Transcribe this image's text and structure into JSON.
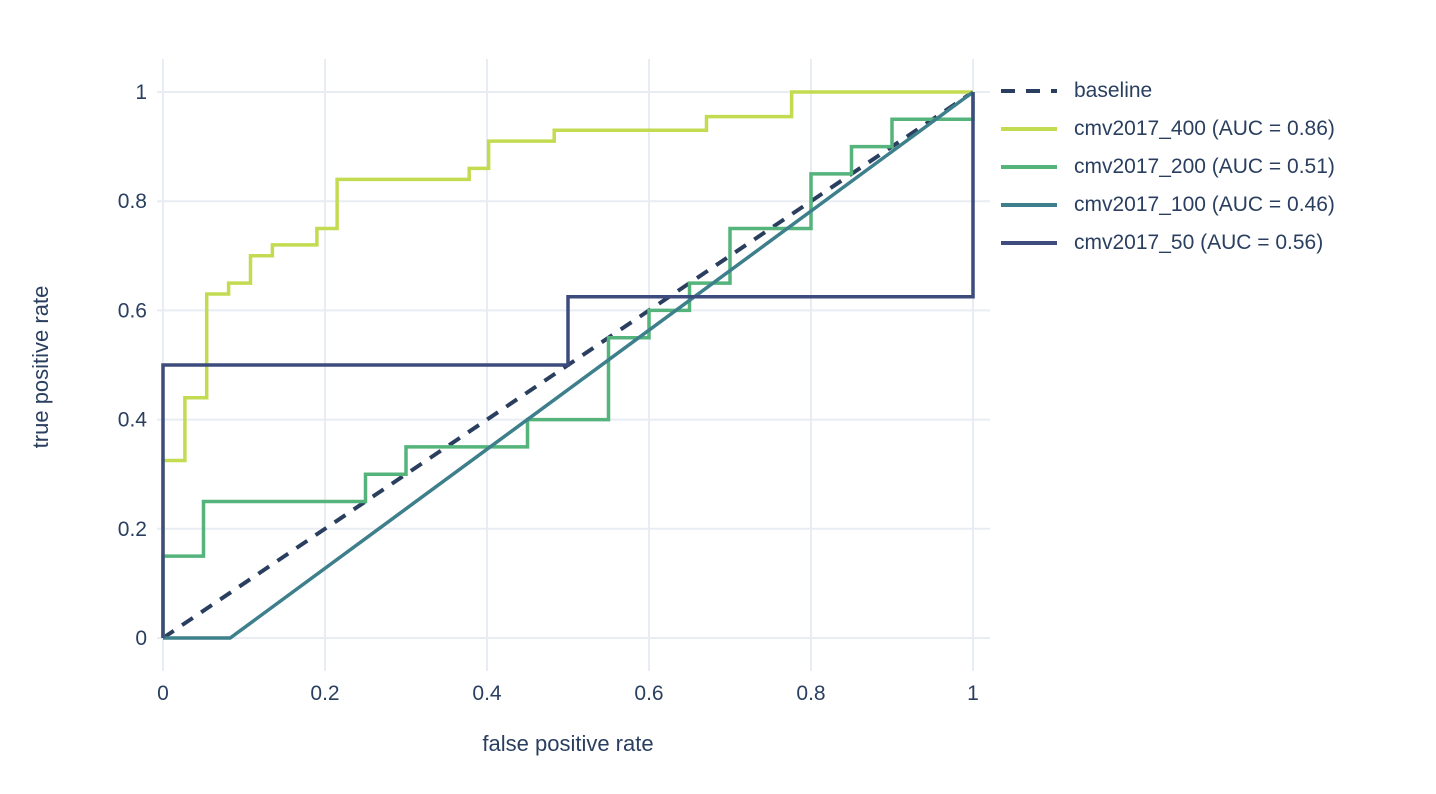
{
  "chart_data": {
    "type": "line",
    "title": "",
    "xlabel": "false positive rate",
    "ylabel": "true positive rate",
    "xlim": [
      -0.007,
      1.021
    ],
    "ylim": [
      -0.06,
      1.06
    ],
    "x_ticks": [
      0,
      0.2,
      0.4,
      0.6,
      0.8,
      1
    ],
    "x_tick_labels": [
      "0",
      "0.2",
      "0.4",
      "0.6",
      "0.8",
      "1"
    ],
    "y_ticks": [
      0,
      0.2,
      0.4,
      0.6,
      0.8,
      1
    ],
    "y_tick_labels": [
      "0",
      "0.2",
      "0.4",
      "0.6",
      "0.8",
      "1"
    ],
    "grid": true,
    "legend_position": "right",
    "text_color": "#2a3f5f",
    "grid_color": "#e8edf4",
    "series": [
      {
        "id": "baseline",
        "name": "baseline",
        "color": "#2a3f5f",
        "dash": true,
        "width": 4,
        "points": [
          [
            0,
            0
          ],
          [
            1,
            1
          ]
        ]
      },
      {
        "id": "cmv2017_400",
        "name": "cmv2017_400 (AUC = 0.86)",
        "auc": 0.86,
        "color": "#c3db50",
        "dash": false,
        "width": 3.5,
        "points": [
          [
            0,
            0
          ],
          [
            0,
            0.325
          ],
          [
            0.027,
            0.325
          ],
          [
            0.027,
            0.44
          ],
          [
            0.054,
            0.44
          ],
          [
            0.054,
            0.63
          ],
          [
            0.081,
            0.63
          ],
          [
            0.081,
            0.65
          ],
          [
            0.108,
            0.65
          ],
          [
            0.108,
            0.7
          ],
          [
            0.135,
            0.7
          ],
          [
            0.135,
            0.72
          ],
          [
            0.19,
            0.72
          ],
          [
            0.19,
            0.75
          ],
          [
            0.215,
            0.75
          ],
          [
            0.215,
            0.84
          ],
          [
            0.378,
            0.84
          ],
          [
            0.378,
            0.86
          ],
          [
            0.402,
            0.86
          ],
          [
            0.402,
            0.91
          ],
          [
            0.483,
            0.91
          ],
          [
            0.483,
            0.93
          ],
          [
            0.671,
            0.93
          ],
          [
            0.671,
            0.955
          ],
          [
            0.776,
            0.955
          ],
          [
            0.776,
            1
          ],
          [
            1,
            1
          ]
        ]
      },
      {
        "id": "cmv2017_200",
        "name": "cmv2017_200 (AUC = 0.51)",
        "auc": 0.51,
        "color": "#54b47b",
        "dash": false,
        "width": 3.5,
        "points": [
          [
            0,
            0
          ],
          [
            0,
            0.15
          ],
          [
            0.05,
            0.15
          ],
          [
            0.05,
            0.25
          ],
          [
            0.25,
            0.25
          ],
          [
            0.25,
            0.3
          ],
          [
            0.3,
            0.3
          ],
          [
            0.3,
            0.35
          ],
          [
            0.45,
            0.35
          ],
          [
            0.45,
            0.4
          ],
          [
            0.55,
            0.4
          ],
          [
            0.55,
            0.55
          ],
          [
            0.6,
            0.55
          ],
          [
            0.6,
            0.6
          ],
          [
            0.65,
            0.6
          ],
          [
            0.65,
            0.65
          ],
          [
            0.7,
            0.65
          ],
          [
            0.7,
            0.75
          ],
          [
            0.8,
            0.75
          ],
          [
            0.8,
            0.85
          ],
          [
            0.85,
            0.85
          ],
          [
            0.85,
            0.9
          ],
          [
            0.9,
            0.9
          ],
          [
            0.9,
            0.95
          ],
          [
            1,
            0.95
          ],
          [
            1,
            1
          ]
        ]
      },
      {
        "id": "cmv2017_100",
        "name": "cmv2017_100 (AUC = 0.46)",
        "auc": 0.46,
        "color": "#3e7f8c",
        "dash": false,
        "width": 3.5,
        "points": [
          [
            0,
            0
          ],
          [
            0.083,
            0
          ],
          [
            1,
            1
          ]
        ]
      },
      {
        "id": "cmv2017_50",
        "name": "cmv2017_50 (AUC = 0.56)",
        "auc": 0.56,
        "color": "#3d4b7d",
        "dash": false,
        "width": 3.5,
        "points": [
          [
            0,
            0
          ],
          [
            0,
            0.5
          ],
          [
            0.5,
            0.5
          ],
          [
            0.5,
            0.625
          ],
          [
            1,
            0.625
          ],
          [
            1,
            1
          ]
        ]
      }
    ]
  }
}
